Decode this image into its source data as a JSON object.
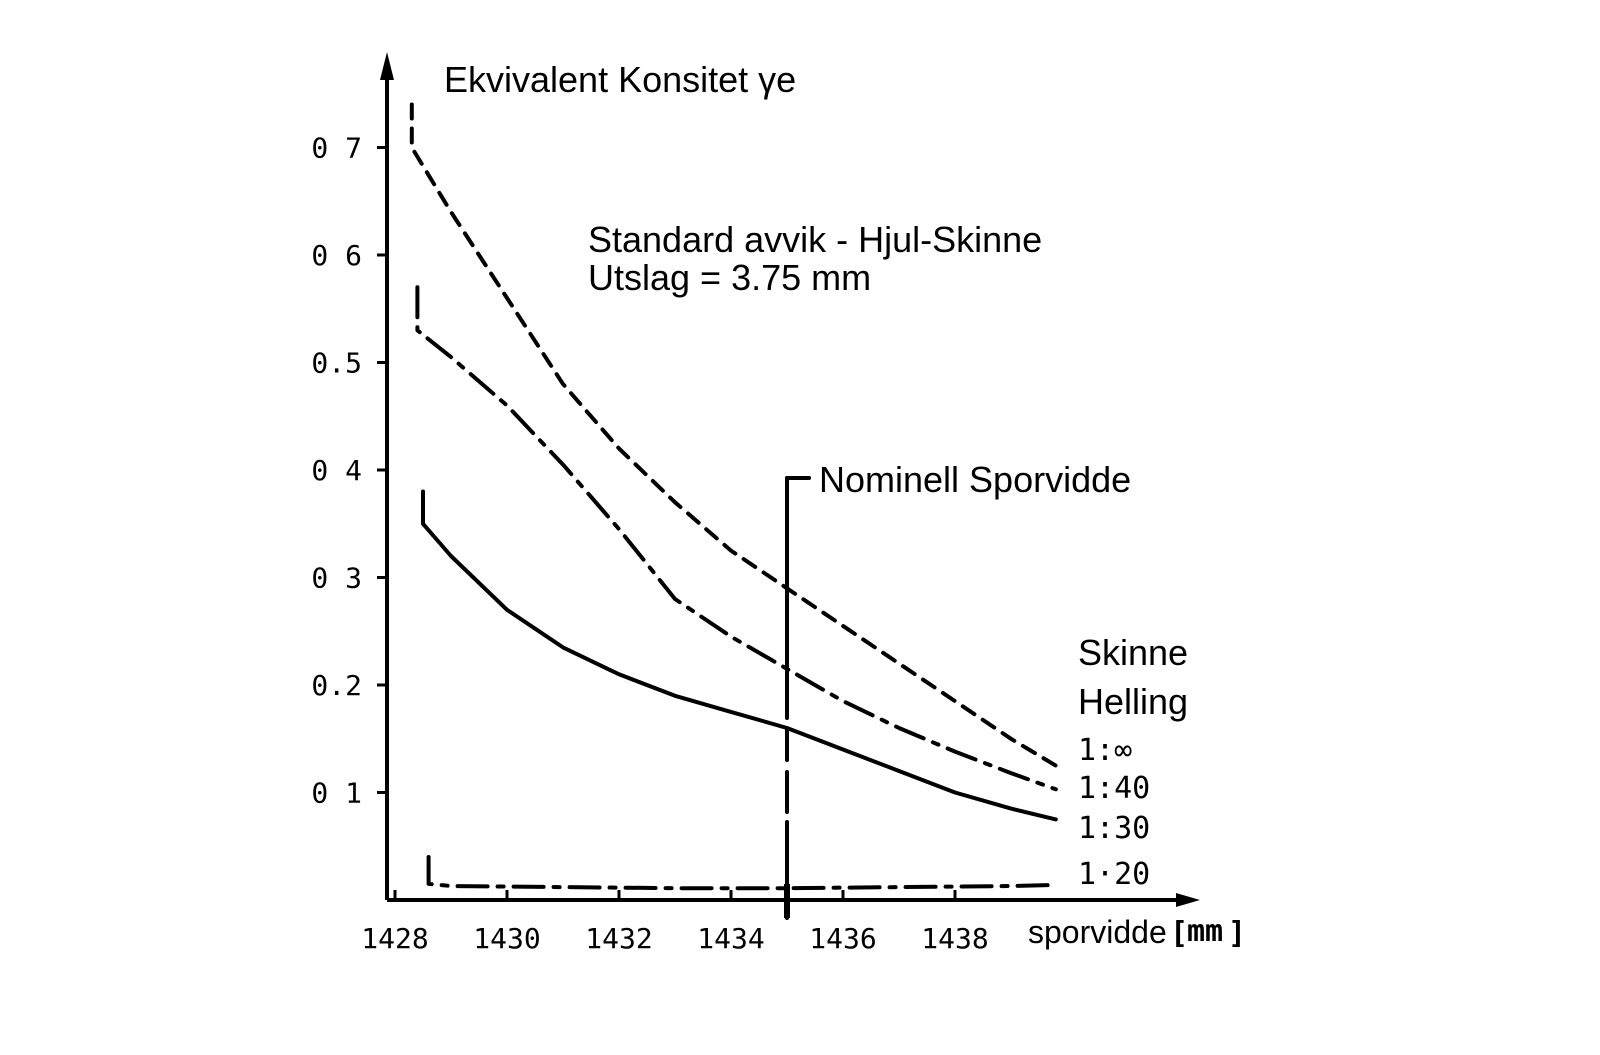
{
  "chart_data": {
    "type": "line",
    "title": "Ekvivalent Konsitet γe",
    "title_symbol": "γe",
    "annotation": {
      "line1": "Standard avvik - Hjul-Skinne",
      "line2": "Utslag = 3.75 mm"
    },
    "nominal_marker": {
      "label": "Nominell Sporvidde",
      "x": 1435
    },
    "xlabel": "sporvidde",
    "xunit": "mm",
    "xlim": [
      1428,
      1440
    ],
    "ylim": [
      0,
      0.75
    ],
    "x_ticks": [
      "1428",
      "1430",
      "1432",
      "1434",
      "1436",
      "1438"
    ],
    "y_ticks": [
      "0 1",
      "0.2",
      "0 3",
      "0 4",
      "0.5",
      "0 6",
      "0 7"
    ],
    "legend": {
      "title_line1": "Skinne",
      "title_line2": "Helling",
      "placement": "right"
    },
    "series": [
      {
        "name": "1:∞",
        "style": "dashed",
        "points": [
          [
            1428.3,
            0.74
          ],
          [
            1428.3,
            0.7
          ],
          [
            1429,
            0.64
          ],
          [
            1430,
            0.56
          ],
          [
            1431,
            0.48
          ],
          [
            1432,
            0.42
          ],
          [
            1433,
            0.37
          ],
          [
            1434,
            0.325
          ],
          [
            1435,
            0.29
          ],
          [
            1436,
            0.255
          ],
          [
            1437,
            0.22
          ],
          [
            1438,
            0.185
          ],
          [
            1439,
            0.15
          ],
          [
            1439.8,
            0.125
          ]
        ]
      },
      {
        "name": "1:40",
        "style": "dash-dot",
        "points": [
          [
            1428.4,
            0.57
          ],
          [
            1428.4,
            0.53
          ],
          [
            1429,
            0.505
          ],
          [
            1430,
            0.46
          ],
          [
            1431,
            0.405
          ],
          [
            1432,
            0.345
          ],
          [
            1433,
            0.28
          ],
          [
            1434,
            0.245
          ],
          [
            1435,
            0.215
          ],
          [
            1436,
            0.185
          ],
          [
            1437,
            0.16
          ],
          [
            1438,
            0.138
          ],
          [
            1439,
            0.118
          ],
          [
            1439.8,
            0.103
          ]
        ]
      },
      {
        "name": "1:30",
        "style": "solid",
        "points": [
          [
            1428.5,
            0.38
          ],
          [
            1428.5,
            0.35
          ],
          [
            1429,
            0.32
          ],
          [
            1430,
            0.27
          ],
          [
            1431,
            0.235
          ],
          [
            1432,
            0.21
          ],
          [
            1433,
            0.19
          ],
          [
            1434,
            0.175
          ],
          [
            1435,
            0.16
          ],
          [
            1436,
            0.14
          ],
          [
            1437,
            0.12
          ],
          [
            1438,
            0.1
          ],
          [
            1439,
            0.085
          ],
          [
            1439.8,
            0.075
          ]
        ]
      },
      {
        "name": "1·20",
        "style": "dash-dot",
        "points": [
          [
            1428.6,
            0.04
          ],
          [
            1428.6,
            0.015
          ],
          [
            1429,
            0.013
          ],
          [
            1431,
            0.012
          ],
          [
            1433,
            0.011
          ],
          [
            1435,
            0.011
          ],
          [
            1437,
            0.012
          ],
          [
            1439,
            0.013
          ],
          [
            1439.8,
            0.014
          ]
        ]
      }
    ]
  }
}
